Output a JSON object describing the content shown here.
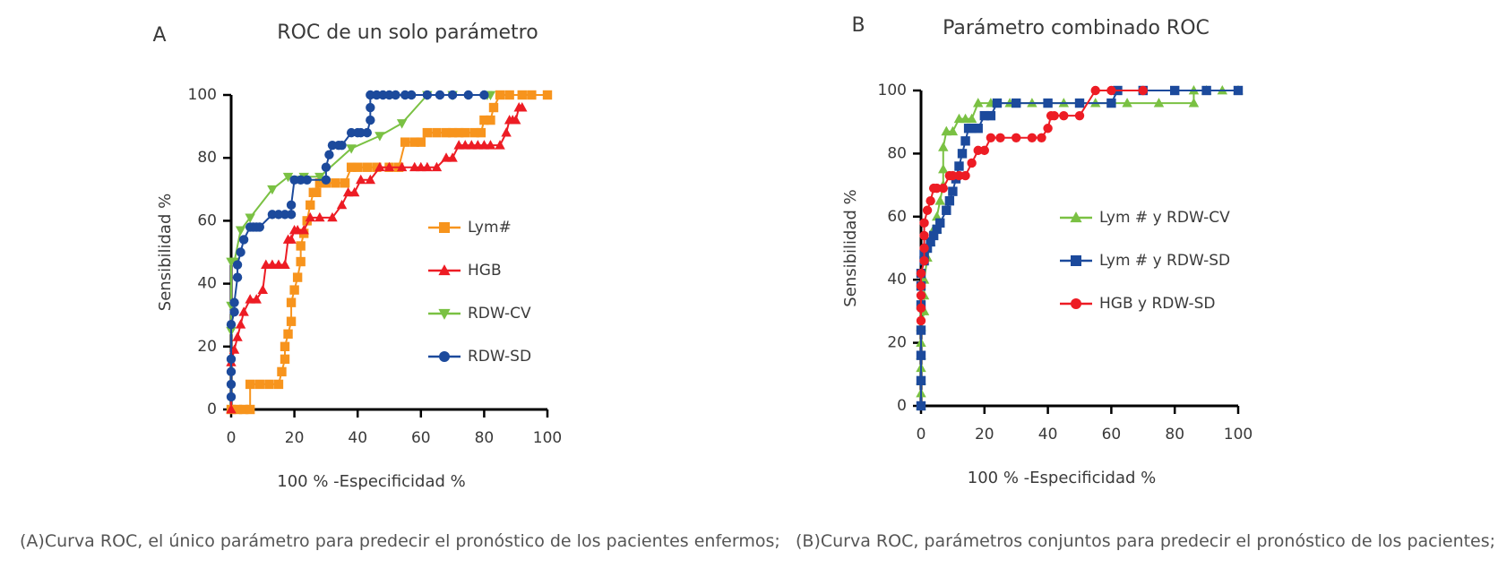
{
  "chart_data": [
    {
      "type": "line",
      "panel_label": "A",
      "title": "ROC de un solo parámetro",
      "xlabel": "100 % -Especificidad %",
      "ylabel": "Sensibilidad %",
      "xlim": [
        0,
        100
      ],
      "ylim": [
        0,
        100
      ],
      "xticks": [
        "0",
        "20",
        "40",
        "60",
        "80",
        "100"
      ],
      "yticks": [
        "0",
        "20",
        "40",
        "60",
        "80",
        "100"
      ],
      "legend": "right-middle",
      "series": [
        {
          "name": "Lym#",
          "color": "#f7941d",
          "marker": "square",
          "x": [
            0,
            2,
            4,
            6,
            6,
            9,
            12,
            15,
            16,
            17,
            17,
            18,
            19,
            19,
            20,
            21,
            22,
            22,
            23,
            24,
            25,
            26,
            27,
            28,
            29,
            30,
            33,
            36,
            38,
            40,
            43,
            46,
            50,
            53,
            55,
            58,
            60,
            62,
            65,
            68,
            70,
            72,
            74,
            77,
            79,
            80,
            82,
            83,
            85,
            88,
            92,
            95,
            100
          ],
          "y": [
            0,
            0,
            0,
            0,
            8,
            8,
            8,
            8,
            12,
            16,
            20,
            24,
            28,
            34,
            38,
            42,
            47,
            52,
            56,
            60,
            65,
            69,
            69,
            72,
            72,
            72,
            72,
            72,
            77,
            77,
            77,
            77,
            77,
            77,
            85,
            85,
            85,
            88,
            88,
            88,
            88,
            88,
            88,
            88,
            88,
            92,
            92,
            96,
            100,
            100,
            100,
            100,
            100
          ]
        },
        {
          "name": "HGB",
          "color": "#ed1c24",
          "marker": "triangle",
          "x": [
            0,
            0,
            1,
            2,
            3,
            4,
            6,
            8,
            10,
            11,
            13,
            15,
            17,
            18,
            19,
            20,
            21,
            23,
            25,
            28,
            32,
            35,
            37,
            39,
            41,
            44,
            47,
            50,
            54,
            58,
            60,
            62,
            65,
            68,
            70,
            72,
            74,
            76,
            78,
            80,
            82,
            85,
            87,
            88,
            89,
            90,
            91,
            92
          ],
          "y": [
            0,
            15,
            19,
            23,
            27,
            31,
            35,
            35,
            38,
            46,
            46,
            46,
            46,
            54,
            54,
            57,
            57,
            57,
            61,
            61,
            61,
            65,
            69,
            69,
            73,
            73,
            77,
            77,
            77,
            77,
            77,
            77,
            77,
            80,
            80,
            84,
            84,
            84,
            84,
            84,
            84,
            84,
            88,
            92,
            92,
            92,
            96,
            96
          ]
        },
        {
          "name": "RDW-CV",
          "color": "#7ac143",
          "marker": "triangle-down",
          "x": [
            0,
            0,
            0,
            1,
            3,
            6,
            13,
            18,
            23,
            28,
            38,
            47,
            54,
            62,
            70,
            81,
            82
          ],
          "y": [
            25,
            33,
            47,
            47,
            57,
            61,
            70,
            74,
            74,
            74,
            83,
            87,
            91,
            100,
            100,
            100,
            100
          ]
        },
        {
          "name": "RDW-SD",
          "color": "#1c4a9c",
          "marker": "circle",
          "x": [
            0,
            0,
            0,
            0,
            0,
            1,
            1,
            2,
            2,
            3,
            4,
            6,
            7,
            8,
            9,
            13,
            15,
            17,
            19,
            19,
            20,
            22,
            24,
            30,
            30,
            31,
            32,
            34,
            35,
            38,
            40,
            41,
            43,
            44,
            44,
            44,
            46,
            48,
            50,
            52,
            55,
            57,
            62,
            66,
            70,
            75,
            80
          ],
          "y": [
            4,
            8,
            12,
            16,
            27,
            31,
            34,
            42,
            46,
            50,
            54,
            58,
            58,
            58,
            58,
            62,
            62,
            62,
            62,
            65,
            73,
            73,
            73,
            73,
            77,
            81,
            84,
            84,
            84,
            88,
            88,
            88,
            88,
            92,
            96,
            100,
            100,
            100,
            100,
            100,
            100,
            100,
            100,
            100,
            100,
            100,
            100
          ]
        }
      ]
    },
    {
      "type": "line",
      "panel_label": "B",
      "title": "Parámetro combinado ROC",
      "xlabel": "100 % -Especificidad %",
      "ylabel": "Sensibilidad %",
      "xlim": [
        0,
        100
      ],
      "ylim": [
        0,
        100
      ],
      "xticks": [
        "0",
        "20",
        "40",
        "60",
        "80",
        "100"
      ],
      "yticks": [
        "0",
        "20",
        "40",
        "60",
        "80",
        "100"
      ],
      "legend": "right-middle",
      "series": [
        {
          "name": "Lym # y RDW-CV",
          "color": "#7ac143",
          "marker": "triangle",
          "x": [
            0,
            0,
            0,
            0,
            0,
            0,
            0,
            1,
            1,
            1,
            2,
            3,
            4,
            5,
            5,
            6,
            7,
            7,
            7,
            8,
            8,
            10,
            12,
            14,
            16,
            18,
            22,
            28,
            35,
            45,
            55,
            65,
            75,
            86,
            86,
            90,
            95,
            100
          ],
          "y": [
            0,
            4,
            8,
            12,
            16,
            20,
            25,
            30,
            35,
            40,
            47,
            52,
            56,
            56,
            60,
            65,
            70,
            75,
            82,
            87,
            87,
            87,
            91,
            91,
            91,
            96,
            96,
            96,
            96,
            96,
            96,
            96,
            96,
            96,
            100,
            100,
            100,
            100
          ]
        },
        {
          "name": "Lym # y RDW-SD",
          "color": "#1c4a9c",
          "marker": "square",
          "x": [
            0,
            0,
            0,
            0,
            0,
            0,
            0,
            1,
            1,
            2,
            3,
            4,
            5,
            6,
            8,
            9,
            10,
            11,
            12,
            13,
            14,
            15,
            16,
            18,
            20,
            22,
            24,
            30,
            40,
            50,
            60,
            62,
            70,
            80,
            90,
            100
          ],
          "y": [
            0,
            8,
            16,
            24,
            32,
            38,
            42,
            46,
            48,
            50,
            52,
            54,
            56,
            58,
            62,
            65,
            68,
            72,
            76,
            80,
            84,
            88,
            88,
            88,
            92,
            92,
            96,
            96,
            96,
            96,
            96,
            100,
            100,
            100,
            100,
            100
          ]
        },
        {
          "name": "HGB y RDW-SD",
          "color": "#ed1c24",
          "marker": "circle",
          "x": [
            0,
            0,
            0,
            0,
            0,
            1,
            1,
            1,
            1,
            2,
            3,
            4,
            5,
            7,
            9,
            10,
            12,
            14,
            16,
            18,
            20,
            22,
            25,
            30,
            35,
            38,
            40,
            41,
            42,
            45,
            50,
            55,
            60,
            70
          ],
          "y": [
            27,
            31,
            35,
            38,
            42,
            46,
            50,
            54,
            58,
            62,
            65,
            69,
            69,
            69,
            73,
            73,
            73,
            73,
            77,
            81,
            81,
            85,
            85,
            85,
            85,
            85,
            88,
            92,
            92,
            92,
            92,
            100,
            100,
            100
          ]
        }
      ]
    }
  ],
  "captions": {
    "a": "(A)Curva ROC, el único parámetro para predecir el pronóstico de los pacientes enfermos;",
    "b": "(B)Curva ROC, parámetros conjuntos para predecir el pronóstico de los pacientes;"
  }
}
